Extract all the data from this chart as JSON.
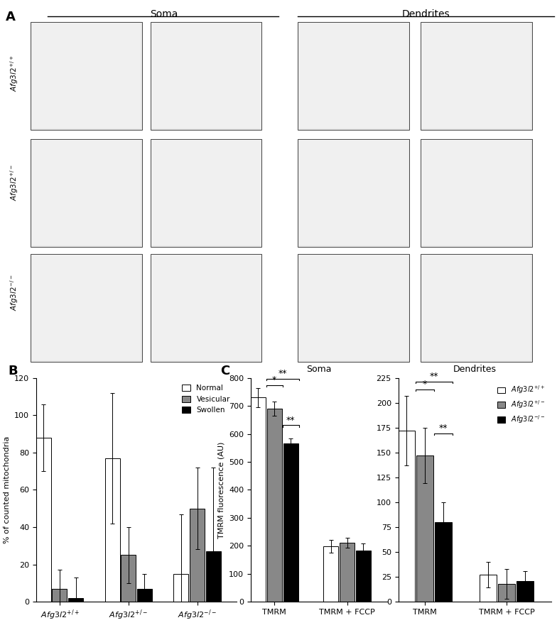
{
  "panel_B": {
    "groups": [
      "$\\mathit{Afg3l2}^{+/+}$",
      "$\\mathit{Afg3l2}^{+/-}$",
      "$\\mathit{Afg3l2}^{-/-}$"
    ],
    "categories": [
      "Normal",
      "Vesicular",
      "Swollen"
    ],
    "colors": [
      "white",
      "#888888",
      "black"
    ],
    "values": [
      [
        88,
        7,
        2
      ],
      [
        77,
        25,
        7
      ],
      [
        15,
        50,
        27
      ]
    ],
    "errors": [
      [
        18,
        10,
        11
      ],
      [
        35,
        15,
        8
      ],
      [
        32,
        22,
        45
      ]
    ],
    "ylabel": "% of counted mitochondria",
    "ylim": [
      0,
      120
    ],
    "yticks": [
      0,
      20,
      40,
      60,
      80,
      100,
      120
    ]
  },
  "panel_C_soma": {
    "title": "Soma",
    "groups": [
      "TMRM",
      "TMRM + FCCP"
    ],
    "colors": [
      "white",
      "#888888",
      "black"
    ],
    "values": [
      [
        730,
        690,
        565
      ],
      [
        198,
        210,
        182
      ]
    ],
    "errors": [
      [
        35,
        25,
        18
      ],
      [
        22,
        18,
        25
      ]
    ],
    "ylabel": "TMRM fluorescence (AU)",
    "ylim": [
      0,
      800
    ],
    "yticks": [
      0,
      100,
      200,
      300,
      400,
      500,
      600,
      700,
      800
    ]
  },
  "panel_C_dendrites": {
    "title": "Dendrites",
    "groups": [
      "TMRM",
      "TMRM + FCCP"
    ],
    "colors": [
      "white",
      "#888888",
      "black"
    ],
    "values": [
      [
        172,
        147,
        80
      ],
      [
        27,
        18,
        21
      ]
    ],
    "errors": [
      [
        35,
        28,
        20
      ],
      [
        13,
        15,
        10
      ]
    ],
    "ylim": [
      0,
      225
    ],
    "yticks": [
      0,
      25,
      50,
      75,
      100,
      125,
      150,
      175,
      200,
      225
    ],
    "legend_labels": [
      "$\\mathit{Afg3l2}^{+/+}$",
      "$\\mathit{Afg3l2}^{+/-}$",
      "$\\mathit{Afg3l2}^{-/-}$"
    ]
  },
  "row_labels": [
    "$\\mathit{Afg3l2}^{+/+}$",
    "$\\mathit{Afg3l2}^{+/-}$",
    "$\\mathit{Afg3l2}^{-/-}$"
  ],
  "fig_width": 7.84,
  "fig_height": 8.88
}
